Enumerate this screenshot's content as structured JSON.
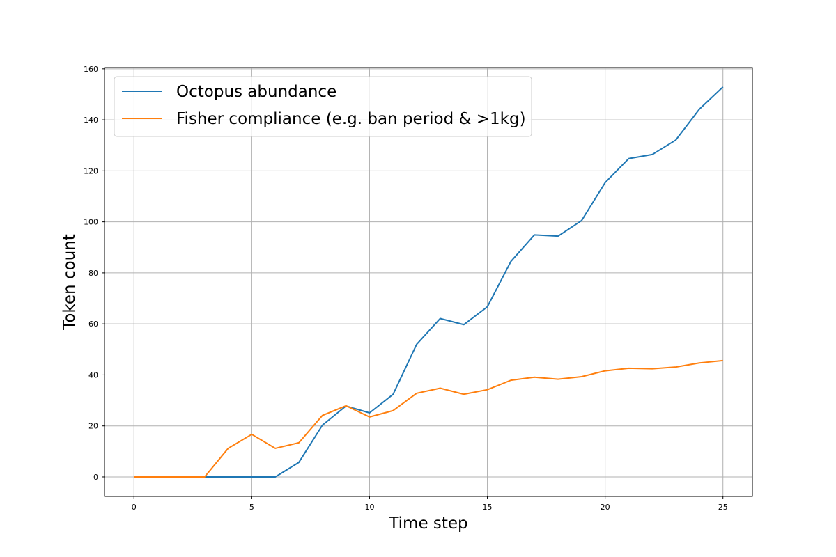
{
  "chart_data": {
    "type": "line",
    "title": "",
    "xlabel": "Time step",
    "ylabel": "Token count",
    "xlim": [
      -1.25,
      26.25
    ],
    "ylim": [
      -7.65,
      160.5
    ],
    "xticks": [
      0,
      5,
      10,
      15,
      20,
      25
    ],
    "yticks": [
      0,
      20,
      40,
      60,
      80,
      100,
      120,
      140,
      160
    ],
    "grid": true,
    "legend_position": "top-left",
    "x": [
      0,
      1,
      2,
      3,
      4,
      5,
      6,
      7,
      8,
      9,
      10,
      11,
      12,
      13,
      14,
      15,
      16,
      17,
      18,
      19,
      20,
      21,
      22,
      23,
      24,
      25
    ],
    "series": [
      {
        "name": "Octopus abundance",
        "color": "#1f77b4",
        "values": [
          0,
          0,
          0,
          0,
          0,
          0,
          0,
          5.7,
          20.3,
          27.8,
          25.1,
          32.4,
          52.0,
          62.1,
          59.7,
          66.7,
          84.5,
          94.9,
          94.4,
          100.5,
          115.4,
          124.8,
          126.4,
          132.1,
          144.2,
          152.9
        ]
      },
      {
        "name": "Fisher compliance (e.g. ban period & >1kg)",
        "color": "#ff7f0e",
        "values": [
          0,
          0,
          0,
          0,
          11.2,
          16.7,
          11.2,
          13.4,
          24.1,
          27.9,
          23.5,
          26.0,
          32.8,
          34.8,
          32.4,
          34.2,
          37.9,
          39.1,
          38.3,
          39.3,
          41.6,
          42.6,
          42.4,
          43.1,
          44.7,
          45.6
        ]
      }
    ]
  }
}
